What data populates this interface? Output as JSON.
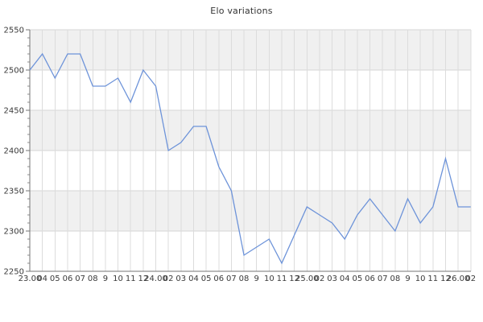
{
  "chart_data": {
    "type": "line",
    "title": "Elo variations",
    "x_labels": [
      "23.00",
      "04",
      "05",
      "06",
      "07",
      "08",
      "9",
      "10",
      "11",
      "12",
      "24.00",
      "02",
      "03",
      "04",
      "05",
      "06",
      "07",
      "08",
      "9",
      "10",
      "11",
      "12",
      "25.00",
      "02",
      "03",
      "04",
      "05",
      "06",
      "07",
      "08",
      "9",
      "10",
      "11",
      "12",
      "26.00",
      "02"
    ],
    "values": [
      2500,
      2520,
      2490,
      2520,
      2520,
      2480,
      2480,
      2490,
      2460,
      2500,
      2480,
      2400,
      2410,
      2430,
      2430,
      2380,
      2350,
      2270,
      2280,
      2290,
      2260,
      2295,
      2330,
      2320,
      2310,
      2290,
      2320,
      2340,
      2320,
      2300,
      2340,
      2310,
      2330,
      2390,
      2330,
      2330
    ],
    "ylim": [
      2250,
      2550
    ],
    "ytick_labels": [
      "2550",
      "2500",
      "2450",
      "2400",
      "2350",
      "2300",
      "2250"
    ],
    "ytick_step": 50,
    "y_minor_tick_step": 10,
    "grid": "both",
    "legend": "none",
    "plot_style": "alternating horizontal bands",
    "colors": {
      "line": "#6d93d9",
      "band": "#f0f0f0",
      "grid_vertical": "#dcdcdc",
      "grid_horizontal": "#d6d6d6",
      "axis": "#757575",
      "minor_tick": "#8f8f8f",
      "text": "#3a3a3a",
      "background": "#ffffff"
    }
  }
}
